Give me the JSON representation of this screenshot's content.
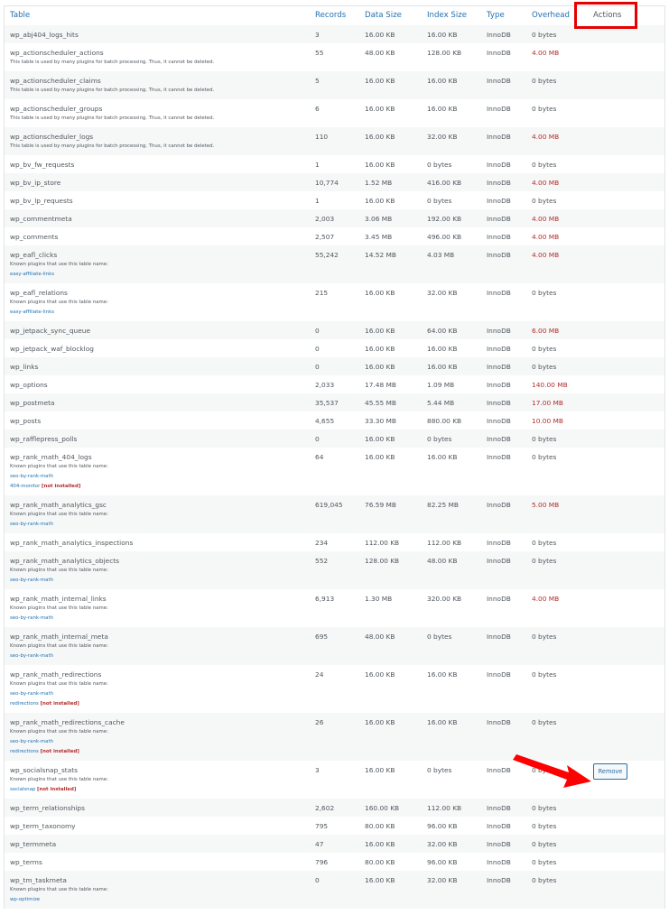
{
  "headers": {
    "table": "Table",
    "records": "Records",
    "data_size": "Data Size",
    "index_size": "Index Size",
    "type": "Type",
    "overhead": "Overhead",
    "actions": "Actions"
  },
  "labels": {
    "known_plugins": "Known plugins that use this table name:",
    "not_installed": "[not installed]",
    "remove": "Remove"
  },
  "colors": {
    "link": "#2271b1",
    "warning": "#b32d2e",
    "highlight": "#e80000"
  },
  "rows": [
    {
      "name": "wp_abj404_logs_hits",
      "records": "3",
      "data": "16.00 KB",
      "index": "16.00 KB",
      "type": "InnoDB",
      "overhead": "0 bytes"
    },
    {
      "name": "wp_actionscheduler_actions",
      "records": "55",
      "data": "48.00 KB",
      "index": "128.00 KB",
      "type": "InnoDB",
      "overhead": "4.00 MB",
      "note": "This table is used by many plugins for batch processing. Thus, it cannot be deleted."
    },
    {
      "name": "wp_actionscheduler_claims",
      "records": "5",
      "data": "16.00 KB",
      "index": "16.00 KB",
      "type": "InnoDB",
      "overhead": "0 bytes",
      "note": "This table is used by many plugins for batch processing. Thus, it cannot be deleted."
    },
    {
      "name": "wp_actionscheduler_groups",
      "records": "6",
      "data": "16.00 KB",
      "index": "16.00 KB",
      "type": "InnoDB",
      "overhead": "0 bytes",
      "note": "This table is used by many plugins for batch processing. Thus, it cannot be deleted."
    },
    {
      "name": "wp_actionscheduler_logs",
      "records": "110",
      "data": "16.00 KB",
      "index": "32.00 KB",
      "type": "InnoDB",
      "overhead": "4.00 MB",
      "note": "This table is used by many plugins for batch processing. Thus, it cannot be deleted."
    },
    {
      "name": "wp_bv_fw_requests",
      "records": "1",
      "data": "16.00 KB",
      "index": "0 bytes",
      "type": "InnoDB",
      "overhead": "0 bytes"
    },
    {
      "name": "wp_bv_ip_store",
      "records": "10,774",
      "data": "1.52 MB",
      "index": "416.00 KB",
      "type": "InnoDB",
      "overhead": "4.00 MB"
    },
    {
      "name": "wp_bv_lp_requests",
      "records": "1",
      "data": "16.00 KB",
      "index": "0 bytes",
      "type": "InnoDB",
      "overhead": "0 bytes"
    },
    {
      "name": "wp_commentmeta",
      "records": "2,003",
      "data": "3.06 MB",
      "index": "192.00 KB",
      "type": "InnoDB",
      "overhead": "4.00 MB"
    },
    {
      "name": "wp_comments",
      "records": "2,507",
      "data": "3.45 MB",
      "index": "496.00 KB",
      "type": "InnoDB",
      "overhead": "4.00 MB"
    },
    {
      "name": "wp_eafl_clicks",
      "records": "55,242",
      "data": "14.52 MB",
      "index": "4.03 MB",
      "type": "InnoDB",
      "overhead": "4.00 MB",
      "plugins": [
        {
          "name": "easy-affiliate-links"
        }
      ]
    },
    {
      "name": "wp_eafl_relations",
      "records": "215",
      "data": "16.00 KB",
      "index": "32.00 KB",
      "type": "InnoDB",
      "overhead": "0 bytes",
      "plugins": [
        {
          "name": "easy-affiliate-links"
        }
      ]
    },
    {
      "name": "wp_jetpack_sync_queue",
      "records": "0",
      "data": "16.00 KB",
      "index": "64.00 KB",
      "type": "InnoDB",
      "overhead": "6.00 MB"
    },
    {
      "name": "wp_jetpack_waf_blocklog",
      "records": "0",
      "data": "16.00 KB",
      "index": "16.00 KB",
      "type": "InnoDB",
      "overhead": "0 bytes"
    },
    {
      "name": "wp_links",
      "records": "0",
      "data": "16.00 KB",
      "index": "16.00 KB",
      "type": "InnoDB",
      "overhead": "0 bytes"
    },
    {
      "name": "wp_options",
      "records": "2,033",
      "data": "17.48 MB",
      "index": "1.09 MB",
      "type": "InnoDB",
      "overhead": "140.00 MB"
    },
    {
      "name": "wp_postmeta",
      "records": "35,537",
      "data": "45.55 MB",
      "index": "5.44 MB",
      "type": "InnoDB",
      "overhead": "17.00 MB"
    },
    {
      "name": "wp_posts",
      "records": "4,655",
      "data": "33.30 MB",
      "index": "880.00 KB",
      "type": "InnoDB",
      "overhead": "10.00 MB"
    },
    {
      "name": "wp_rafflepress_polls",
      "records": "0",
      "data": "16.00 KB",
      "index": "0 bytes",
      "type": "InnoDB",
      "overhead": "0 bytes"
    },
    {
      "name": "wp_rank_math_404_logs",
      "records": "64",
      "data": "16.00 KB",
      "index": "16.00 KB",
      "type": "InnoDB",
      "overhead": "0 bytes",
      "plugins": [
        {
          "name": "seo-by-rank-math"
        },
        {
          "name": "404-monitor",
          "not_installed": true
        }
      ]
    },
    {
      "name": "wp_rank_math_analytics_gsc",
      "records": "619,045",
      "data": "76.59 MB",
      "index": "82.25 MB",
      "type": "InnoDB",
      "overhead": "5.00 MB",
      "plugins": [
        {
          "name": "seo-by-rank-math"
        }
      ]
    },
    {
      "name": "wp_rank_math_analytics_inspections",
      "records": "234",
      "data": "112.00 KB",
      "index": "112.00 KB",
      "type": "InnoDB",
      "overhead": "0 bytes"
    },
    {
      "name": "wp_rank_math_analytics_objects",
      "records": "552",
      "data": "128.00 KB",
      "index": "48.00 KB",
      "type": "InnoDB",
      "overhead": "0 bytes",
      "plugins": [
        {
          "name": "seo-by-rank-math"
        }
      ]
    },
    {
      "name": "wp_rank_math_internal_links",
      "records": "6,913",
      "data": "1.30 MB",
      "index": "320.00 KB",
      "type": "InnoDB",
      "overhead": "4.00 MB",
      "plugins": [
        {
          "name": "seo-by-rank-math"
        }
      ]
    },
    {
      "name": "wp_rank_math_internal_meta",
      "records": "695",
      "data": "48.00 KB",
      "index": "0 bytes",
      "type": "InnoDB",
      "overhead": "0 bytes",
      "plugins": [
        {
          "name": "seo-by-rank-math"
        }
      ]
    },
    {
      "name": "wp_rank_math_redirections",
      "records": "24",
      "data": "16.00 KB",
      "index": "16.00 KB",
      "type": "InnoDB",
      "overhead": "0 bytes",
      "plugins": [
        {
          "name": "seo-by-rank-math"
        },
        {
          "name": "redirections",
          "not_installed": true
        }
      ]
    },
    {
      "name": "wp_rank_math_redirections_cache",
      "records": "26",
      "data": "16.00 KB",
      "index": "16.00 KB",
      "type": "InnoDB",
      "overhead": "0 bytes",
      "plugins": [
        {
          "name": "seo-by-rank-math"
        },
        {
          "name": "redirections",
          "not_installed": true
        }
      ]
    },
    {
      "name": "wp_socialsnap_stats",
      "records": "3",
      "data": "16.00 KB",
      "index": "0 bytes",
      "type": "InnoDB",
      "overhead": "0 bytes",
      "plugins": [
        {
          "name": "socialsnap",
          "not_installed": true
        }
      ],
      "removable": true
    },
    {
      "name": "wp_term_relationships",
      "records": "2,602",
      "data": "160.00 KB",
      "index": "112.00 KB",
      "type": "InnoDB",
      "overhead": "0 bytes"
    },
    {
      "name": "wp_term_taxonomy",
      "records": "795",
      "data": "80.00 KB",
      "index": "96.00 KB",
      "type": "InnoDB",
      "overhead": "0 bytes"
    },
    {
      "name": "wp_termmeta",
      "records": "47",
      "data": "16.00 KB",
      "index": "32.00 KB",
      "type": "InnoDB",
      "overhead": "0 bytes"
    },
    {
      "name": "wp_terms",
      "records": "796",
      "data": "80.00 KB",
      "index": "96.00 KB",
      "type": "InnoDB",
      "overhead": "0 bytes"
    },
    {
      "name": "wp_tm_taskmeta",
      "records": "0",
      "data": "16.00 KB",
      "index": "32.00 KB",
      "type": "InnoDB",
      "overhead": "0 bytes",
      "plugins": [
        {
          "name": "wp-optimize"
        }
      ]
    }
  ]
}
